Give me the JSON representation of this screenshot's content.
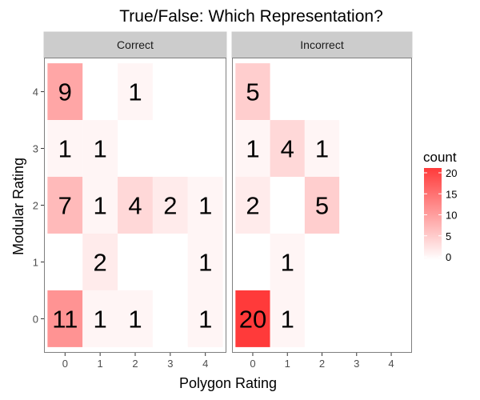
{
  "chart_data": {
    "type": "heatmap",
    "title": "True/False: Which Representation?",
    "xlabel": "Polygon Rating",
    "ylabel": "Modular Rating",
    "x_categories": [
      "0",
      "1",
      "2",
      "3",
      "4"
    ],
    "y_categories": [
      "0",
      "1",
      "2",
      "3",
      "4"
    ],
    "facets": [
      {
        "name": "Correct",
        "cells": [
          {
            "x": 0,
            "y": 4,
            "count": 9
          },
          {
            "x": 2,
            "y": 4,
            "count": 1
          },
          {
            "x": 0,
            "y": 3,
            "count": 1
          },
          {
            "x": 1,
            "y": 3,
            "count": 1
          },
          {
            "x": 0,
            "y": 2,
            "count": 7
          },
          {
            "x": 1,
            "y": 2,
            "count": 1
          },
          {
            "x": 2,
            "y": 2,
            "count": 4
          },
          {
            "x": 3,
            "y": 2,
            "count": 2
          },
          {
            "x": 4,
            "y": 2,
            "count": 1
          },
          {
            "x": 1,
            "y": 1,
            "count": 2
          },
          {
            "x": 4,
            "y": 1,
            "count": 1
          },
          {
            "x": 0,
            "y": 0,
            "count": 11
          },
          {
            "x": 1,
            "y": 0,
            "count": 1
          },
          {
            "x": 2,
            "y": 0,
            "count": 1
          },
          {
            "x": 4,
            "y": 0,
            "count": 1
          }
        ]
      },
      {
        "name": "Incorrect",
        "cells": [
          {
            "x": 0,
            "y": 4,
            "count": 5
          },
          {
            "x": 0,
            "y": 3,
            "count": 1
          },
          {
            "x": 1,
            "y": 3,
            "count": 4
          },
          {
            "x": 2,
            "y": 3,
            "count": 1
          },
          {
            "x": 0,
            "y": 2,
            "count": 2
          },
          {
            "x": 2,
            "y": 2,
            "count": 5
          },
          {
            "x": 1,
            "y": 1,
            "count": 1
          },
          {
            "x": 0,
            "y": 0,
            "count": 20
          },
          {
            "x": 1,
            "y": 0,
            "count": 1
          }
        ]
      }
    ],
    "legend": {
      "title": "count",
      "ticks": [
        "0",
        "5",
        "10",
        "15",
        "20"
      ],
      "min": 0,
      "max": 20,
      "low_color": "#ffffff",
      "high_color": "#ff3a3a",
      "placement": "right"
    },
    "colors": {
      "strip_background": "#cccccc",
      "panel_border": "#7f7f7f"
    }
  }
}
